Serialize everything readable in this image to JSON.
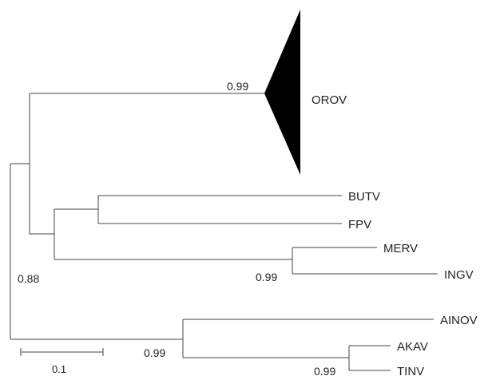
{
  "tree": {
    "collapsed_clade": {
      "label": "OROV",
      "support": "0.99",
      "fill_color": "#000000"
    },
    "taxa": [
      "BUTV",
      "FPV",
      "MERV",
      "INGV",
      "AINOV",
      "AKAV",
      "TINV"
    ],
    "support_values": {
      "butv_fpv_merv_ingv": "0.88",
      "merv_ingv": "0.99",
      "ainov_akav_tinv": "0.99",
      "akav_tinv": "0.99"
    },
    "scale_bar": {
      "label": "0.1"
    },
    "branch_color": "#444444"
  }
}
